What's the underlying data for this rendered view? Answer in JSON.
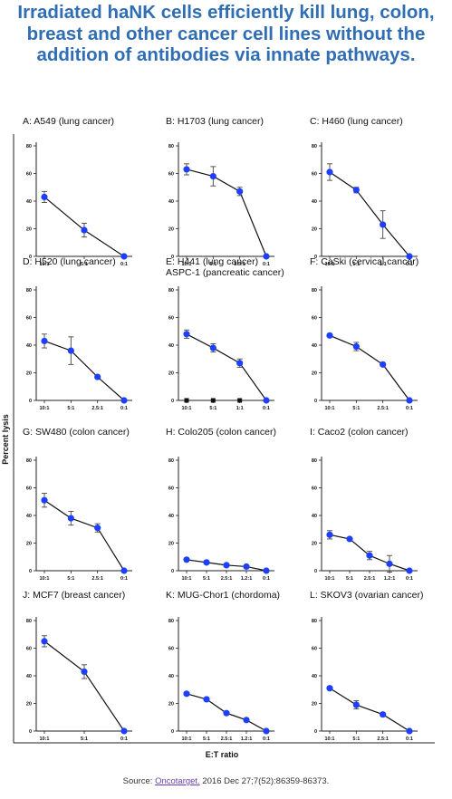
{
  "title": "Irradiated haNK cells efficiently kill lung, colon, breast and other cancer cell lines without the addition of antibodies via innate pathways.",
  "source": {
    "prefix": "Source: ",
    "link_text": "Oncotarget.",
    "suffix": " 2016 Dec 27;7(52):86359-86373."
  },
  "axes": {
    "ylabel": "Percent lysis",
    "xlabel": "E:T ratio"
  },
  "colors": {
    "title": "#2f6db5",
    "marker": "#1f3fff",
    "line": "#111111",
    "link": "#6a3fb5"
  },
  "chart_data": [
    {
      "type": "line",
      "title": "A: A549 (lung cancer)",
      "categories": [
        "10:1",
        "5:1",
        "0:1"
      ],
      "ylim": [
        0,
        80
      ],
      "yticks": [
        "0",
        "20",
        "40",
        "60",
        "80"
      ],
      "series": [
        {
          "values": [
            43,
            19,
            0
          ],
          "error": [
            4,
            5,
            0
          ]
        }
      ]
    },
    {
      "type": "line",
      "title": "B: H1703 (lung cancer)",
      "categories": [
        "10:1",
        "5:1",
        "2.5:1",
        "0:1"
      ],
      "ylim": [
        0,
        80
      ],
      "yticks": [
        "0",
        "20",
        "40",
        "60",
        "80"
      ],
      "series": [
        {
          "values": [
            63,
            58,
            47,
            0
          ],
          "error": [
            4,
            7,
            3,
            0
          ]
        }
      ]
    },
    {
      "type": "line",
      "title": "C: H460 (lung cancer)",
      "categories": [
        "10:1",
        "5:1",
        "1:1",
        "0:1"
      ],
      "ylim": [
        0,
        80
      ],
      "yticks": [
        "0",
        "20",
        "40",
        "60",
        "80"
      ],
      "series": [
        {
          "values": [
            61,
            48,
            23,
            0
          ],
          "error": [
            6,
            2,
            10,
            0
          ]
        }
      ]
    },
    {
      "type": "line",
      "title": "D: H520 (lung cancer)",
      "categories": [
        "10:1",
        "5:1",
        "2.5:1",
        "0:1"
      ],
      "ylim": [
        0,
        80
      ],
      "yticks": [
        "0",
        "20",
        "40",
        "60",
        "80"
      ],
      "series": [
        {
          "values": [
            43,
            36,
            17,
            0
          ],
          "error": [
            5,
            10,
            1,
            0
          ]
        }
      ]
    },
    {
      "type": "line",
      "title": "E: H441 (lung cancer)",
      "subtitle": "ASPC-1 (pancreatic cancer)",
      "categories": [
        "10:1",
        "5:1",
        "1:1",
        "0:1"
      ],
      "ylim": [
        0,
        80
      ],
      "yticks": [
        "0",
        "20",
        "40",
        "60",
        "80"
      ],
      "series": [
        {
          "values": [
            48,
            38,
            27,
            0
          ],
          "error": [
            3,
            3,
            3,
            0
          ]
        },
        {
          "values": [
            0,
            0,
            0,
            0
          ],
          "error": [
            0,
            0,
            0,
            0
          ],
          "marker": "square",
          "color": "#111111"
        }
      ]
    },
    {
      "type": "line",
      "title": "F: CaSki (cervical cancer)",
      "categories": [
        "10:1",
        "5:1",
        "2.5:1",
        "0:1"
      ],
      "ylim": [
        0,
        80
      ],
      "yticks": [
        "0",
        "20",
        "40",
        "60",
        "80"
      ],
      "series": [
        {
          "values": [
            47,
            39,
            26,
            0
          ],
          "error": [
            1,
            3,
            1,
            0
          ]
        }
      ]
    },
    {
      "type": "line",
      "title": "G: SW480 (colon cancer)",
      "categories": [
        "10:1",
        "5:1",
        "2.5:1",
        "0:1"
      ],
      "ylim": [
        0,
        80
      ],
      "yticks": [
        "0",
        "20",
        "40",
        "60",
        "80"
      ],
      "series": [
        {
          "values": [
            51,
            38,
            31,
            0
          ],
          "error": [
            5,
            5,
            3,
            0
          ]
        }
      ]
    },
    {
      "type": "line",
      "title": "H: Colo205 (colon cancer)",
      "categories": [
        "10:1",
        "5:1",
        "2.5:1",
        "1.2:1",
        "0:1"
      ],
      "ylim": [
        0,
        80
      ],
      "yticks": [
        "0",
        "20",
        "40",
        "60",
        "80"
      ],
      "series": [
        {
          "values": [
            8,
            6,
            4,
            3,
            0
          ],
          "error": [
            1,
            1,
            1,
            1,
            0
          ]
        }
      ]
    },
    {
      "type": "line",
      "title": "I: Caco2 (colon cancer)",
      "categories": [
        "10:1",
        "5:1",
        "2.5:1",
        "1.2:1",
        "0:1"
      ],
      "ylim": [
        0,
        80
      ],
      "yticks": [
        "0",
        "20",
        "40",
        "60",
        "80"
      ],
      "series": [
        {
          "values": [
            26,
            23,
            11,
            5,
            0
          ],
          "error": [
            3,
            1,
            3,
            6,
            0
          ]
        }
      ]
    },
    {
      "type": "line",
      "title": "J: MCF7 (breast cancer)",
      "categories": [
        "10:1",
        "5:1",
        "0:1"
      ],
      "ylim": [
        0,
        80
      ],
      "yticks": [
        "0",
        "20",
        "40",
        "60",
        "80"
      ],
      "series": [
        {
          "values": [
            65,
            43,
            0
          ],
          "error": [
            4,
            5,
            0
          ]
        }
      ]
    },
    {
      "type": "line",
      "title": "K: MUG-Chor1 (chordoma)",
      "categories": [
        "10:1",
        "5:1",
        "2.5:1",
        "1.2:1",
        "0:1"
      ],
      "ylim": [
        0,
        80
      ],
      "yticks": [
        "0",
        "20",
        "40",
        "60",
        "80"
      ],
      "series": [
        {
          "values": [
            27,
            23,
            13,
            8,
            0
          ],
          "error": [
            1,
            1,
            1,
            1,
            0
          ]
        }
      ]
    },
    {
      "type": "line",
      "title": "L: SKOV3 (ovarian cancer)",
      "categories": [
        "10:1",
        "5:1",
        "2.5:1",
        "0:1"
      ],
      "ylim": [
        0,
        80
      ],
      "yticks": [
        "0",
        "20",
        "40",
        "60",
        "80"
      ],
      "series": [
        {
          "values": [
            31,
            19,
            12,
            0
          ],
          "error": [
            1,
            3,
            1,
            0
          ]
        }
      ]
    }
  ]
}
